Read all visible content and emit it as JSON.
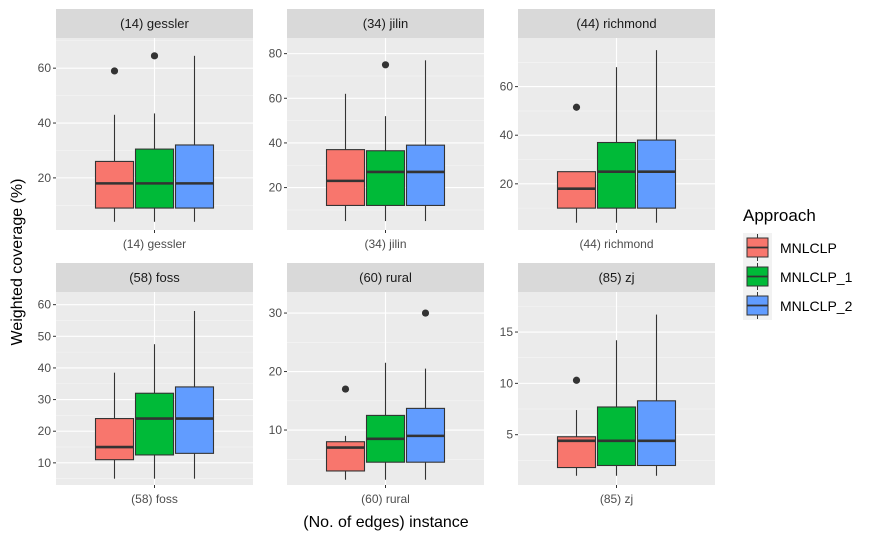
{
  "chart_data": {
    "type": "boxplot",
    "xlabel": "(No. of edges) instance",
    "ylabel": "Weighted coverage (%)",
    "legend": {
      "title": "Approach",
      "position": "right",
      "entries": [
        {
          "name": "MNLCLP",
          "color": "#F8766D"
        },
        {
          "name": "MNLCLP_1",
          "color": "#00BA38"
        },
        {
          "name": "MNLCLP_2",
          "color": "#619CFF"
        }
      ]
    },
    "panels": [
      {
        "title": "(14) gessler",
        "xtick": "(14) gessler",
        "ylim": [
          1,
          71
        ],
        "yticks": [
          20,
          40,
          60
        ],
        "boxes": [
          {
            "series": "MNLCLP",
            "min": 4,
            "q1": 9,
            "median": 18,
            "q3": 26,
            "max": 43,
            "outliers": [
              59
            ]
          },
          {
            "series": "MNLCLP_1",
            "min": 4,
            "q1": 9,
            "median": 18,
            "q3": 30.5,
            "max": 43.5,
            "outliers": [
              64.5
            ]
          },
          {
            "series": "MNLCLP_2",
            "min": 4,
            "q1": 9,
            "median": 18,
            "q3": 32,
            "max": 64.5,
            "outliers": []
          }
        ]
      },
      {
        "title": "(34) jilin",
        "xtick": "(34) jilin",
        "ylim": [
          1,
          87
        ],
        "yticks": [
          20,
          40,
          60,
          80
        ],
        "boxes": [
          {
            "series": "MNLCLP",
            "min": 5,
            "q1": 12,
            "median": 23,
            "q3": 37,
            "max": 62,
            "outliers": []
          },
          {
            "series": "MNLCLP_1",
            "min": 5,
            "q1": 12,
            "median": 27,
            "q3": 36.5,
            "max": 52,
            "outliers": [
              75
            ]
          },
          {
            "series": "MNLCLP_2",
            "min": 5,
            "q1": 12,
            "median": 27,
            "q3": 39,
            "max": 77,
            "outliers": []
          }
        ]
      },
      {
        "title": "(44) richmond",
        "xtick": "(44) richmond",
        "ylim": [
          1,
          80
        ],
        "yticks": [
          20,
          40,
          60
        ],
        "boxes": [
          {
            "series": "MNLCLP",
            "min": 4,
            "q1": 10,
            "median": 18,
            "q3": 25,
            "max": 25,
            "outliers": [
              51.5
            ]
          },
          {
            "series": "MNLCLP_1",
            "min": 4,
            "q1": 10,
            "median": 25,
            "q3": 37,
            "max": 68,
            "outliers": []
          },
          {
            "series": "MNLCLP_2",
            "min": 4,
            "q1": 10,
            "median": 25,
            "q3": 38,
            "max": 75,
            "outliers": []
          }
        ]
      },
      {
        "title": "(58) foss",
        "xtick": "(58) foss",
        "ylim": [
          3,
          64
        ],
        "yticks": [
          10,
          20,
          30,
          40,
          50,
          60
        ],
        "boxes": [
          {
            "series": "MNLCLP",
            "min": 5,
            "q1": 11,
            "median": 15,
            "q3": 24,
            "max": 38.5,
            "outliers": []
          },
          {
            "series": "MNLCLP_1",
            "min": 5,
            "q1": 12.5,
            "median": 24,
            "q3": 32,
            "max": 47.5,
            "outliers": []
          },
          {
            "series": "MNLCLP_2",
            "min": 5,
            "q1": 13,
            "median": 24,
            "q3": 34,
            "max": 58,
            "outliers": []
          }
        ]
      },
      {
        "title": "(60) rural",
        "xtick": "(60) rural",
        "ylim": [
          0.6,
          33.6
        ],
        "yticks": [
          10,
          20,
          30
        ],
        "boxes": [
          {
            "series": "MNLCLP",
            "min": 1.5,
            "q1": 3,
            "median": 7,
            "q3": 8,
            "max": 9,
            "outliers": [
              17
            ]
          },
          {
            "series": "MNLCLP_1",
            "min": 1.5,
            "q1": 4.5,
            "median": 8.5,
            "q3": 12.5,
            "max": 21.5,
            "outliers": []
          },
          {
            "series": "MNLCLP_2",
            "min": 1.5,
            "q1": 4.5,
            "median": 9,
            "q3": 13.7,
            "max": 20.5,
            "outliers": [
              30
            ]
          }
        ]
      },
      {
        "title": "(85) zj",
        "xtick": "(85) zj",
        "ylim": [
          0.1,
          18.9
        ],
        "yticks": [
          5,
          10,
          15
        ],
        "boxes": [
          {
            "series": "MNLCLP",
            "min": 1,
            "q1": 1.8,
            "median": 4.4,
            "q3": 4.8,
            "max": 7.4,
            "outliers": [
              10.3
            ]
          },
          {
            "series": "MNLCLP_1",
            "min": 1,
            "q1": 2,
            "median": 4.4,
            "q3": 7.7,
            "max": 14.2,
            "outliers": []
          },
          {
            "series": "MNLCLP_2",
            "min": 1,
            "q1": 2,
            "median": 4.4,
            "q3": 8.3,
            "max": 16.7,
            "outliers": []
          }
        ]
      }
    ]
  }
}
